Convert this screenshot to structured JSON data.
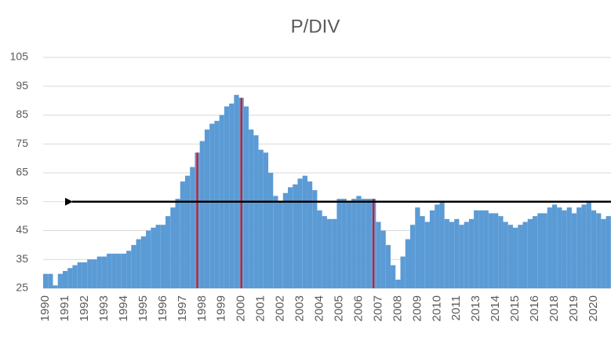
{
  "chart_data": {
    "type": "bar",
    "title": "P/DIV",
    "categories": [
      "1990",
      null,
      null,
      null,
      "1991",
      null,
      null,
      null,
      "1992",
      null,
      null,
      null,
      "1993",
      null,
      null,
      null,
      "1994",
      null,
      null,
      null,
      "1995",
      null,
      null,
      null,
      "1996",
      null,
      null,
      null,
      "1997",
      null,
      null,
      null,
      "1998",
      null,
      null,
      null,
      "1999",
      null,
      null,
      null,
      "2000",
      null,
      null,
      null,
      "2001",
      null,
      null,
      null,
      "2002",
      null,
      null,
      null,
      "2003",
      null,
      null,
      null,
      "2004",
      null,
      null,
      null,
      "2005",
      null,
      null,
      null,
      "2006",
      null,
      null,
      null,
      "2007",
      null,
      null,
      null,
      "2008",
      null,
      null,
      null,
      "2009",
      null,
      null,
      null,
      "2010",
      null,
      null,
      null,
      "2011",
      null,
      null,
      null,
      "2013",
      null,
      null,
      null,
      "2014",
      null,
      null,
      null,
      "2015",
      null,
      null,
      null,
      "2016",
      null,
      null,
      null,
      "2018",
      null,
      null,
      null,
      "2019",
      null,
      null,
      null,
      "2020",
      null,
      null,
      null
    ],
    "values": [
      30,
      30,
      26,
      30,
      31,
      32,
      33,
      34,
      34,
      35,
      35,
      36,
      36,
      37,
      37,
      37,
      37,
      38,
      40,
      42,
      43,
      45,
      46,
      47,
      47,
      50,
      53,
      56,
      62,
      64,
      67,
      72,
      76,
      80,
      82,
      83,
      85,
      88,
      89,
      92,
      91,
      88,
      80,
      78,
      73,
      72,
      65,
      57,
      55,
      58,
      60,
      61,
      63,
      64,
      62,
      59,
      52,
      50,
      49,
      49,
      56,
      56,
      55,
      56,
      57,
      56,
      56,
      56,
      48,
      45,
      40,
      33,
      28,
      36,
      42,
      47,
      53,
      50,
      48,
      52,
      54,
      55,
      49,
      48,
      49,
      47,
      48,
      49,
      52,
      52,
      52,
      51,
      51,
      50,
      48,
      47,
      46,
      47,
      48,
      49,
      50,
      51,
      51,
      53,
      54,
      53,
      52,
      53,
      51,
      53,
      54,
      55,
      52,
      51,
      49,
      50
    ],
    "color": "#5b9bd5",
    "highlight": {
      "color": "#ff0000",
      "indices": [
        31,
        40,
        67
      ]
    },
    "reference_line": {
      "value": 55,
      "color": "#000000"
    },
    "ylim": [
      25,
      105
    ],
    "yticks": [
      25,
      35,
      45,
      55,
      65,
      75,
      85,
      95,
      105
    ],
    "grid": true
  }
}
